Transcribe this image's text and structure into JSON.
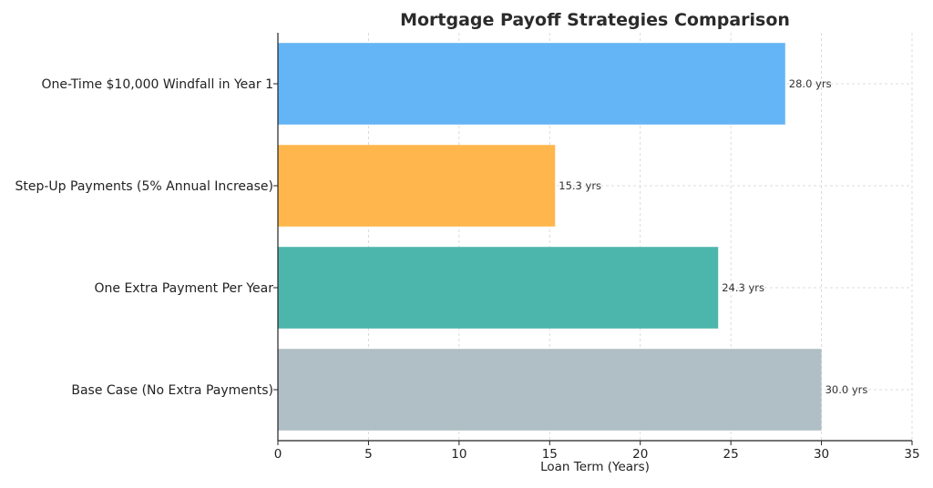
{
  "chart_data": {
    "type": "bar",
    "orientation": "horizontal",
    "title": "Mortgage Payoff Strategies Comparison",
    "xlabel": "Loan Term (Years)",
    "ylabel": "",
    "xlim": [
      0,
      35
    ],
    "xticks": [
      0,
      5,
      10,
      15,
      20,
      25,
      30,
      35
    ],
    "grid": true,
    "categories": [
      "Base Case (No Extra Payments)",
      "One Extra Payment Per Year",
      "Step-Up Payments (5% Annual Increase)",
      "One-Time $10,000 Windfall in Year 1"
    ],
    "values": [
      30.0,
      24.3,
      15.3,
      28.0
    ],
    "data_labels": [
      "30.0 yrs",
      "24.3 yrs",
      "15.3 yrs",
      "28.0 yrs"
    ],
    "colors": [
      "#b0bec5",
      "#4db6ac",
      "#ffb74d",
      "#64b5f6"
    ]
  }
}
